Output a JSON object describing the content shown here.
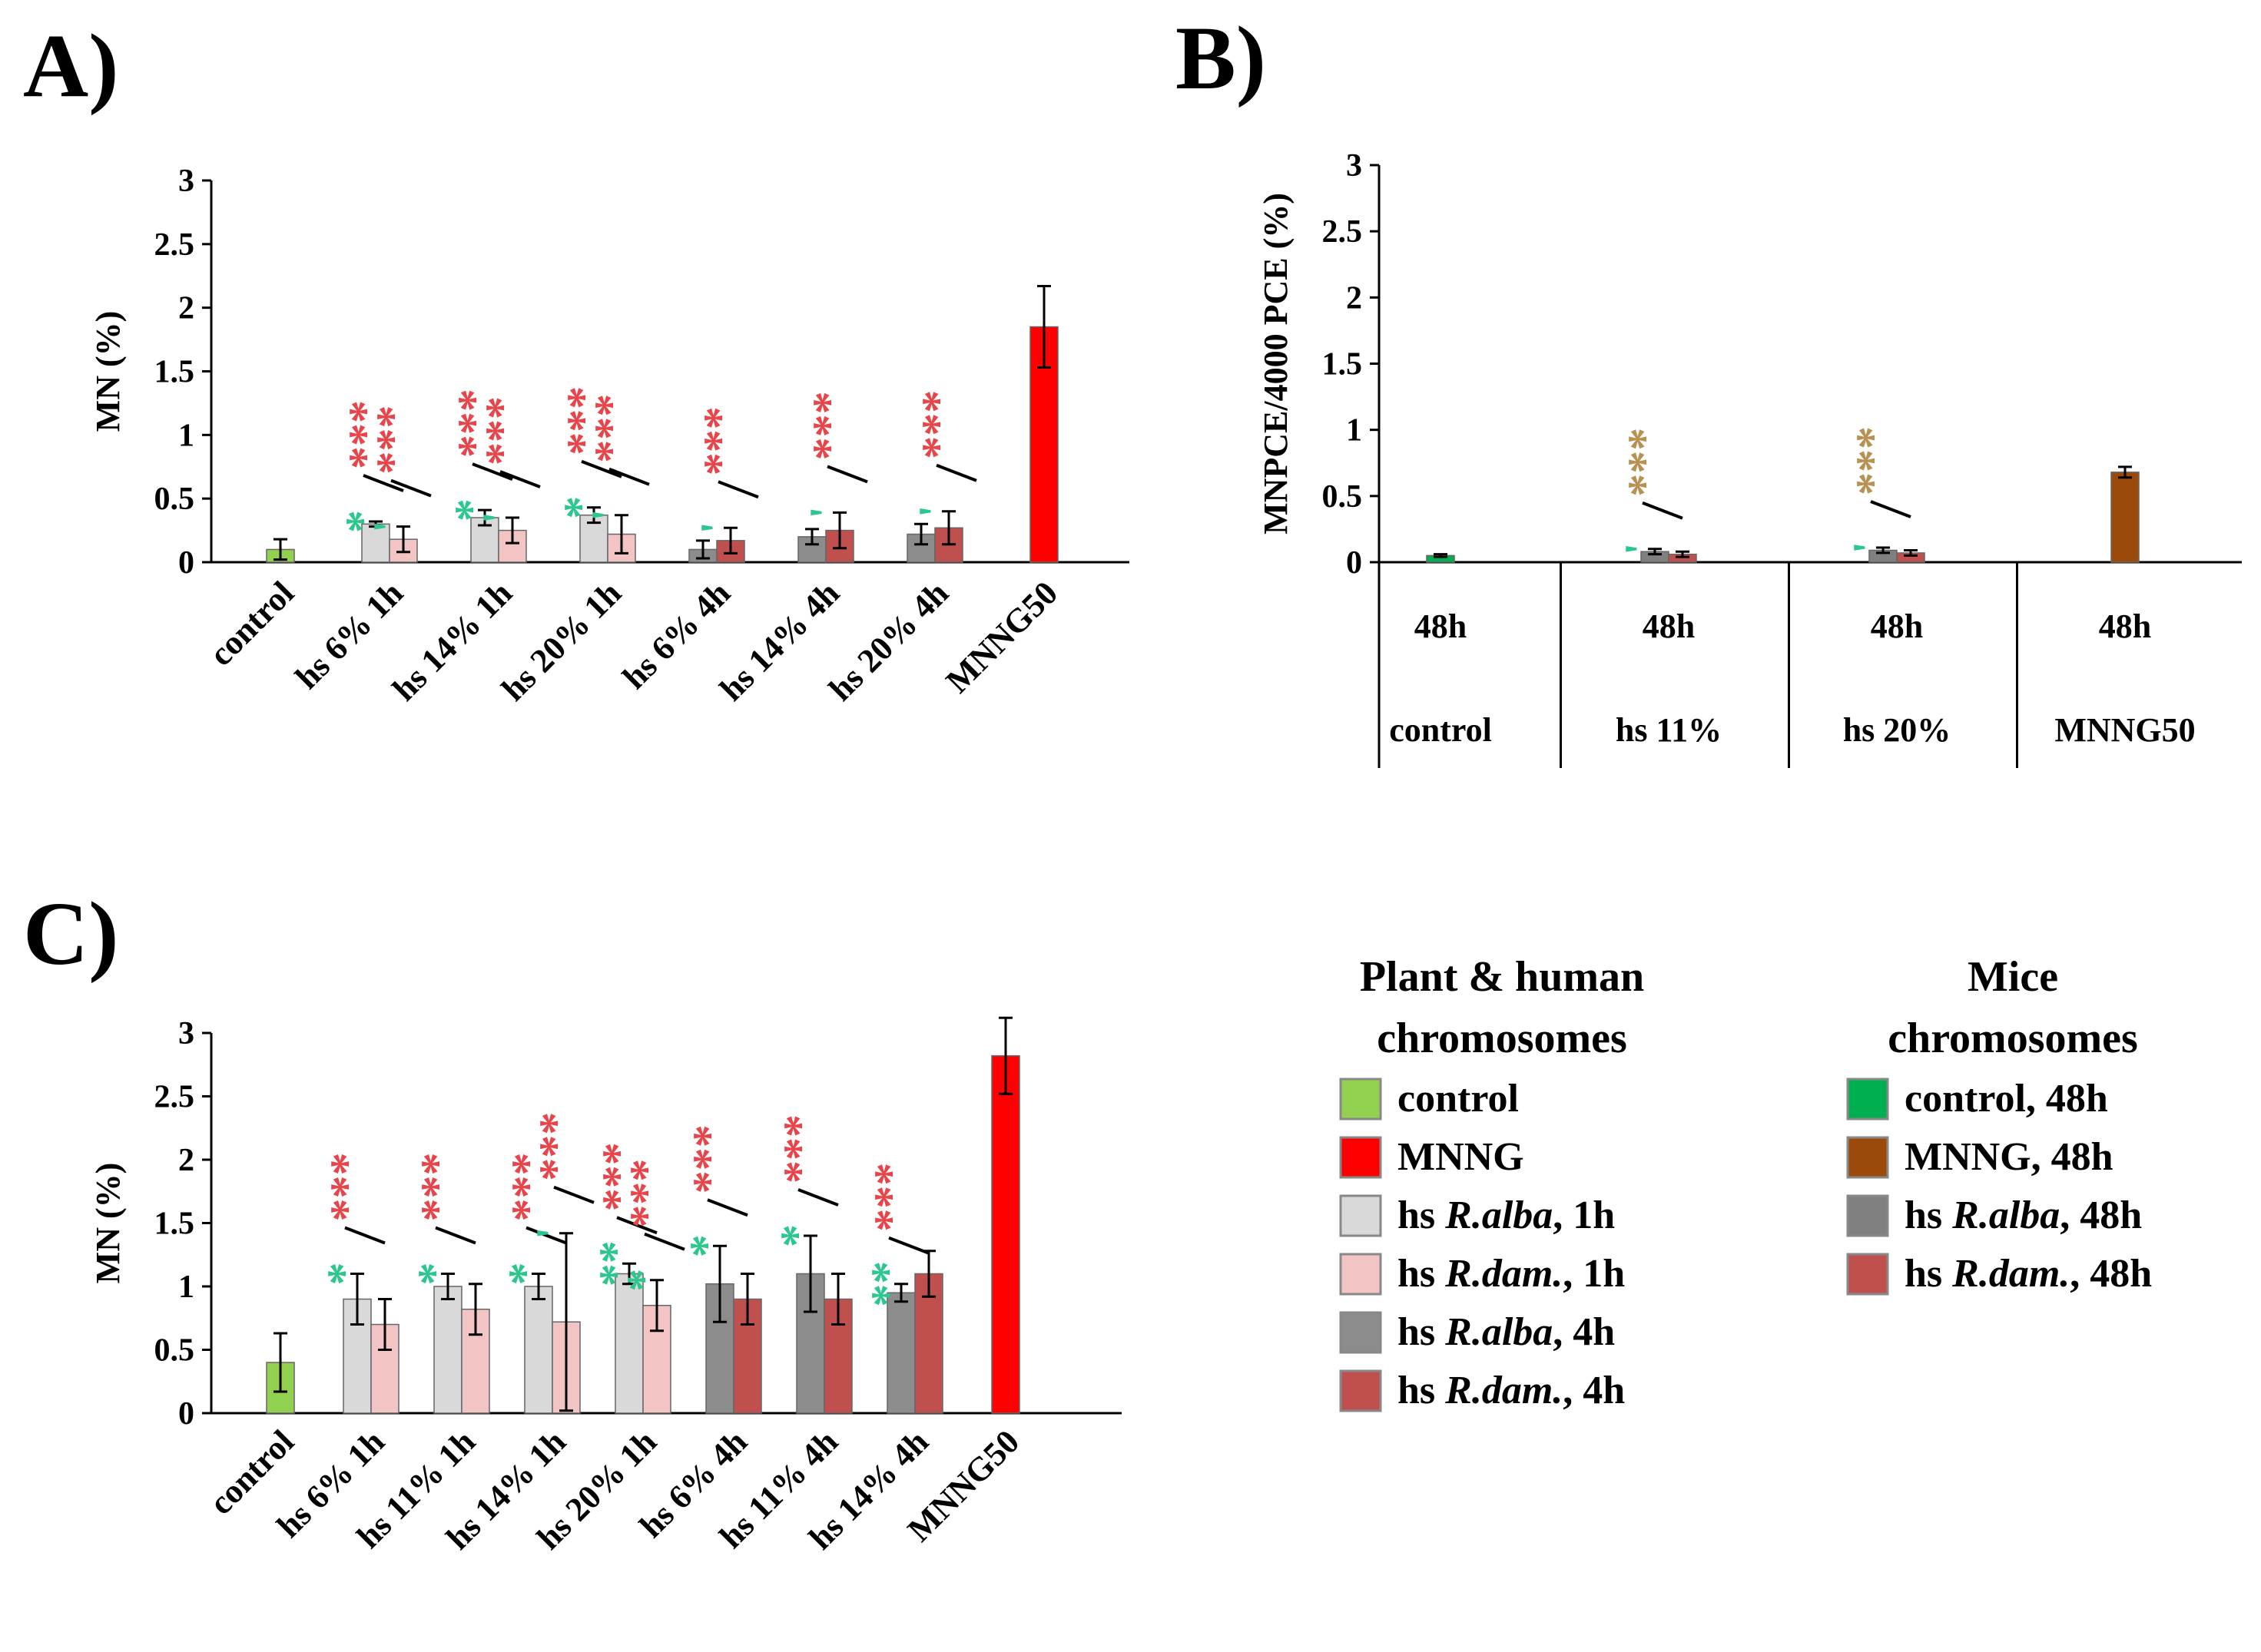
{
  "colors": {
    "control": "#92D050",
    "mnng": "#FF0000",
    "alba_1h": "#D9D9D9",
    "dam_1h": "#F2C4C4",
    "alba_4h": "#8C8C8C",
    "dam_4h": "#C0504D",
    "control_mice": "#00B050",
    "mnng_mice": "#9C4A0A",
    "alba_48h": "#808080",
    "dam_48h": "#C0504D",
    "sig_red": "#E8454A",
    "sig_green": "#2BC78C",
    "sig_brown": "#B89050"
  },
  "chart_data": [
    {
      "id": "A",
      "panel_label": "A)",
      "type": "bar",
      "ylabel": "MN (%)",
      "ylim": [
        0,
        3
      ],
      "yticks": [
        "0",
        "0.5",
        "1",
        "1.5",
        "2",
        "2.5",
        "3"
      ],
      "categories": [
        "control",
        "hs 6% 1h",
        "hs 14% 1h",
        "hs 20% 1h",
        "hs 6% 4h",
        "hs 14% 4h",
        "hs 20% 4h",
        "MNNG50"
      ],
      "groups": [
        {
          "bars": [
            {
              "series": "control",
              "value": 0.1,
              "err": 0.08
            }
          ]
        },
        {
          "bars": [
            {
              "series": "alba_1h",
              "value": 0.3,
              "err": 0.02
            },
            {
              "series": "dam_1h",
              "value": 0.18,
              "err": 0.1
            }
          ],
          "sig": [
            {
              "bar": 0,
              "red": "***",
              "green": "*"
            },
            {
              "bar": 1,
              "red": "***",
              "green": "'"
            }
          ]
        },
        {
          "bars": [
            {
              "series": "alba_1h",
              "value": 0.35,
              "err": 0.06
            },
            {
              "series": "dam_1h",
              "value": 0.25,
              "err": 0.1
            }
          ],
          "sig": [
            {
              "bar": 0,
              "red": "***",
              "green": "*"
            },
            {
              "bar": 1,
              "red": "***",
              "green": "'"
            }
          ]
        },
        {
          "bars": [
            {
              "series": "alba_1h",
              "value": 0.37,
              "err": 0.06
            },
            {
              "series": "dam_1h",
              "value": 0.22,
              "err": 0.15
            }
          ],
          "sig": [
            {
              "bar": 0,
              "red": "***",
              "green": "*"
            },
            {
              "bar": 1,
              "red": "***",
              "green": "'"
            }
          ]
        },
        {
          "bars": [
            {
              "series": "alba_4h",
              "value": 0.1,
              "err": 0.07
            },
            {
              "series": "dam_4h",
              "value": 0.17,
              "err": 0.1
            }
          ],
          "sig": [
            {
              "bar": 1,
              "red": "***",
              "green": "'"
            }
          ]
        },
        {
          "bars": [
            {
              "series": "alba_4h",
              "value": 0.2,
              "err": 0.06
            },
            {
              "series": "dam_4h",
              "value": 0.25,
              "err": 0.14
            }
          ],
          "sig": [
            {
              "bar": 1,
              "red": "***",
              "green": "'"
            }
          ]
        },
        {
          "bars": [
            {
              "series": "alba_4h",
              "value": 0.22,
              "err": 0.08
            },
            {
              "series": "dam_4h",
              "value": 0.27,
              "err": 0.13
            }
          ],
          "sig": [
            {
              "bar": 1,
              "red": "***",
              "green": "'"
            }
          ]
        },
        {
          "bars": [
            {
              "series": "mnng",
              "value": 1.85,
              "err": 0.32
            }
          ]
        }
      ]
    },
    {
      "id": "B",
      "panel_label": "B)",
      "type": "bar",
      "ylabel": "MNPCE/4000 PCE (%)",
      "ylim": [
        0,
        3
      ],
      "yticks": [
        "0",
        "0.5",
        "1",
        "1.5",
        "2",
        "2.5",
        "3"
      ],
      "categories": [
        "control",
        "hs 11%",
        "hs 20%",
        "MNNG50"
      ],
      "time_labels": [
        "48h",
        "48h",
        "48h",
        "48h"
      ],
      "groups": [
        {
          "bars": [
            {
              "series": "control_mice",
              "value": 0.05,
              "err": 0.01
            }
          ]
        },
        {
          "bars": [
            {
              "series": "alba_48h",
              "value": 0.08,
              "err": 0.02
            },
            {
              "series": "dam_48h",
              "value": 0.06,
              "err": 0.02
            }
          ],
          "sig": [
            {
              "bar": 0,
              "brown": "***",
              "green": "'"
            }
          ]
        },
        {
          "bars": [
            {
              "series": "alba_48h",
              "value": 0.09,
              "err": 0.02
            },
            {
              "series": "dam_48h",
              "value": 0.07,
              "err": 0.02
            }
          ],
          "sig": [
            {
              "bar": 0,
              "brown": "***",
              "green": "'"
            }
          ]
        },
        {
          "bars": [
            {
              "series": "mnng_mice",
              "value": 0.68,
              "err": 0.04
            }
          ]
        }
      ]
    },
    {
      "id": "C",
      "panel_label": "C)",
      "type": "bar",
      "ylabel": "MN (%)",
      "ylim": [
        0,
        3
      ],
      "yticks": [
        "0",
        "0.5",
        "1",
        "1.5",
        "2",
        "2.5",
        "3"
      ],
      "categories": [
        "control",
        "hs 6% 1h",
        "hs 11% 1h",
        "hs 14% 1h",
        "hs 20% 1h",
        "hs 6% 4h",
        "hs 11% 4h",
        "hs 14% 4h",
        "MNNG50"
      ],
      "groups": [
        {
          "bars": [
            {
              "series": "control",
              "value": 0.4,
              "err": 0.23
            }
          ]
        },
        {
          "bars": [
            {
              "series": "alba_1h",
              "value": 0.9,
              "err": 0.2
            },
            {
              "series": "dam_1h",
              "value": 0.7,
              "err": 0.2
            }
          ],
          "sig": [
            {
              "bar": 0,
              "red": "***",
              "green": "*"
            }
          ]
        },
        {
          "bars": [
            {
              "series": "alba_1h",
              "value": 1.0,
              "err": 0.1
            },
            {
              "series": "dam_1h",
              "value": 0.82,
              "err": 0.2
            }
          ],
          "sig": [
            {
              "bar": 0,
              "red": "***",
              "green": "*"
            }
          ]
        },
        {
          "bars": [
            {
              "series": "alba_1h",
              "value": 1.0,
              "err": 0.1
            },
            {
              "series": "dam_1h",
              "value": 0.72,
              "err": 0.7
            }
          ],
          "sig": [
            {
              "bar": 0,
              "red": "***",
              "green": "*"
            },
            {
              "bar": 1,
              "red": "***",
              "green": "'"
            }
          ]
        },
        {
          "bars": [
            {
              "series": "alba_1h",
              "value": 1.1,
              "err": 0.08
            },
            {
              "series": "dam_1h",
              "value": 0.85,
              "err": 0.2
            }
          ],
          "sig": [
            {
              "bar": 0,
              "red": "***",
              "green": "**"
            },
            {
              "bar": 1,
              "red": "***",
              "green": "*"
            }
          ]
        },
        {
          "bars": [
            {
              "series": "alba_4h",
              "value": 1.02,
              "err": 0.3
            },
            {
              "series": "dam_4h",
              "value": 0.9,
              "err": 0.2
            }
          ],
          "sig": [
            {
              "bar": 0,
              "red": "***",
              "green": "*"
            }
          ]
        },
        {
          "bars": [
            {
              "series": "alba_4h",
              "value": 1.1,
              "err": 0.3
            },
            {
              "series": "dam_4h",
              "value": 0.9,
              "err": 0.2
            }
          ],
          "sig": [
            {
              "bar": 0,
              "red": "***",
              "green": "*"
            }
          ]
        },
        {
          "bars": [
            {
              "series": "alba_4h",
              "value": 0.95,
              "err": 0.07
            },
            {
              "series": "dam_4h",
              "value": 1.1,
              "err": 0.18
            }
          ],
          "sig": [
            {
              "bar": 0,
              "red": "***",
              "green": "**"
            }
          ]
        },
        {
          "bars": [
            {
              "series": "mnng",
              "value": 2.82,
              "err": 0.3
            }
          ]
        }
      ]
    }
  ],
  "legend": {
    "plant_title_1": "Plant & human",
    "plant_title_2": "chromosomes",
    "plant_items": [
      {
        "color_key": "control",
        "label": "control",
        "italic": "",
        "suffix": ""
      },
      {
        "color_key": "mnng",
        "label": "MNNG",
        "italic": "",
        "suffix": ""
      },
      {
        "color_key": "alba_1h",
        "label": "hs ",
        "italic": "R.alba",
        "suffix": ", 1h"
      },
      {
        "color_key": "dam_1h",
        "label": "hs ",
        "italic": "R.dam.",
        "suffix": ", 1h"
      },
      {
        "color_key": "alba_4h",
        "label": "hs ",
        "italic": "R.alba",
        "suffix": ", 4h"
      },
      {
        "color_key": "dam_4h",
        "label": "hs ",
        "italic": "R.dam.",
        "suffix": ", 4h"
      }
    ],
    "mice_title_1": "Mice",
    "mice_title_2": "chromosomes",
    "mice_items": [
      {
        "color_key": "control_mice",
        "label": "control, 48h",
        "italic": "",
        "suffix": ""
      },
      {
        "color_key": "mnng_mice",
        "label": "MNNG, 48h",
        "italic": "",
        "suffix": ""
      },
      {
        "color_key": "alba_48h",
        "label": "hs ",
        "italic": "R.alba",
        "suffix": ", 48h"
      },
      {
        "color_key": "dam_48h",
        "label": "hs ",
        "italic": "R.dam.",
        "suffix": ", 48h"
      }
    ]
  }
}
